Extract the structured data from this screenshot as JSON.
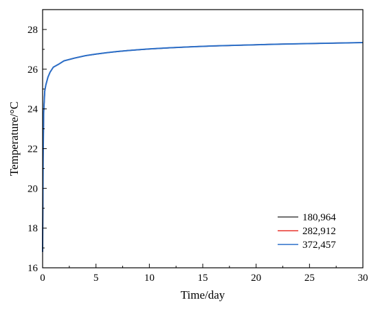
{
  "chart_data": {
    "type": "line",
    "xlabel": "Time/day",
    "ylabel": "Temperature/°C",
    "xlim": [
      0,
      30
    ],
    "ylim": [
      16,
      29
    ],
    "x_ticks": [
      0,
      5,
      10,
      15,
      20,
      25,
      30
    ],
    "x_tick_labels": [
      "0",
      "5",
      "10",
      "15",
      "20",
      "25",
      "30"
    ],
    "y_ticks": [
      16,
      18,
      20,
      22,
      24,
      26,
      28
    ],
    "y_tick_labels": [
      "16",
      "18",
      "20",
      "22",
      "24",
      "26",
      "28"
    ],
    "grid": false,
    "legend_position": "bottom-right",
    "x": [
      0,
      0.05,
      0.1,
      0.2,
      0.3,
      0.5,
      0.7,
      1,
      1.5,
      2,
      3,
      4,
      5,
      6,
      7,
      8,
      9,
      10,
      12,
      14,
      16,
      18,
      20,
      22,
      24,
      26,
      28,
      30
    ],
    "series": [
      {
        "name": "180,964",
        "color": "#404040",
        "values": [
          16.8,
          21.5,
          23.8,
          24.9,
          25.2,
          25.6,
          25.85,
          26.1,
          26.25,
          26.42,
          26.56,
          26.68,
          26.76,
          26.83,
          26.89,
          26.94,
          26.98,
          27.02,
          27.08,
          27.13,
          27.17,
          27.2,
          27.23,
          27.26,
          27.28,
          27.3,
          27.32,
          27.34
        ]
      },
      {
        "name": "282,912",
        "color": "#e8322a",
        "values": [
          16.8,
          21.5,
          23.8,
          24.9,
          25.2,
          25.6,
          25.85,
          26.1,
          26.25,
          26.42,
          26.56,
          26.68,
          26.76,
          26.83,
          26.89,
          26.94,
          26.98,
          27.02,
          27.08,
          27.13,
          27.17,
          27.2,
          27.23,
          27.26,
          27.28,
          27.3,
          27.32,
          27.34
        ]
      },
      {
        "name": "372,457",
        "color": "#2a6fc9",
        "values": [
          16.8,
          21.5,
          23.8,
          24.9,
          25.2,
          25.6,
          25.85,
          26.1,
          26.25,
          26.42,
          26.56,
          26.68,
          26.76,
          26.83,
          26.89,
          26.94,
          26.98,
          27.02,
          27.08,
          27.13,
          27.17,
          27.2,
          27.23,
          27.26,
          27.28,
          27.3,
          27.32,
          27.34
        ]
      }
    ]
  }
}
